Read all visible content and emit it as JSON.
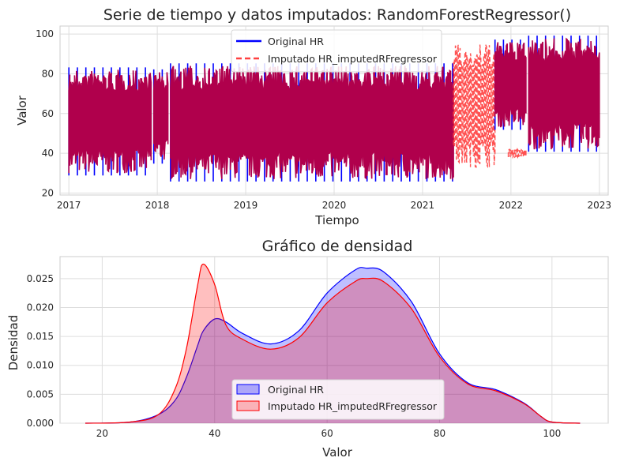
{
  "chart_data": [
    {
      "type": "line",
      "title": "Serie de tiempo y datos imputados: RandomForestRegressor()",
      "xlabel": "Tiempo",
      "ylabel": "Valor",
      "x_ticks": [
        "2017",
        "2018",
        "2019",
        "2020",
        "2021",
        "2022",
        "2023"
      ],
      "y_ticks": [
        20,
        40,
        60,
        80,
        100
      ],
      "xlim": [
        2016.9,
        2023.1
      ],
      "ylim": [
        19,
        104
      ],
      "grid": true,
      "legend": "upper-center",
      "series": [
        {
          "name": "Original HR",
          "color": "#0000ff",
          "style": "solid"
        },
        {
          "name": "Imputado HR_imputedRFregressor",
          "color": "#ff4040",
          "style": "dashed"
        }
      ],
      "overlap_color": "#b0004c",
      "segments": [
        {
          "start": 2017.0,
          "end": 2017.93,
          "low": 30,
          "high": 82,
          "source": "both"
        },
        {
          "start": 2017.96,
          "end": 2018.12,
          "low": 36,
          "high": 81,
          "source": "both"
        },
        {
          "start": 2018.15,
          "end": 2021.35,
          "low": 27,
          "high": 84,
          "source": "both"
        },
        {
          "start": 2021.35,
          "end": 2021.82,
          "low": 33,
          "high": 95,
          "source": "imputed"
        },
        {
          "start": 2021.82,
          "end": 2022.17,
          "low": 53,
          "high": 96,
          "source": "both"
        },
        {
          "start": 2021.97,
          "end": 2022.17,
          "low": 38,
          "high": 42,
          "source": "imputed"
        },
        {
          "start": 2022.2,
          "end": 2023.0,
          "low": 42,
          "high": 98,
          "source": "both"
        }
      ]
    },
    {
      "type": "area",
      "title": "Gráfico de densidad",
      "xlabel": "Valor",
      "ylabel": "Densidad",
      "x_ticks": [
        20,
        40,
        60,
        80,
        100
      ],
      "y_ticks": [
        "0.000",
        "0.005",
        "0.010",
        "0.015",
        "0.020",
        "0.025"
      ],
      "xlim": [
        12.5,
        110
      ],
      "ylim": [
        0,
        0.0288
      ],
      "grid": true,
      "legend": "lower-center",
      "x": [
        17,
        25,
        30,
        33,
        35,
        37,
        38,
        40,
        42,
        45,
        50,
        55,
        60,
        65,
        67,
        70,
        75,
        80,
        85,
        90,
        95,
        98,
        100,
        105
      ],
      "series": [
        {
          "name": "Original HR",
          "color": "#0000ff",
          "values": [
            0,
            0.0002,
            0.0015,
            0.004,
            0.008,
            0.0135,
            0.016,
            0.018,
            0.0175,
            0.0155,
            0.0137,
            0.016,
            0.0225,
            0.0265,
            0.0268,
            0.0262,
            0.021,
            0.012,
            0.007,
            0.0058,
            0.0035,
            0.0012,
            0.0002,
            0
          ]
        },
        {
          "name": "Imputado HR_imputedRFregressor",
          "color": "#ff0000",
          "values": [
            0,
            0.0002,
            0.0015,
            0.006,
            0.013,
            0.024,
            0.0275,
            0.024,
            0.017,
            0.0145,
            0.0128,
            0.0148,
            0.0208,
            0.0245,
            0.025,
            0.0245,
            0.0198,
            0.0115,
            0.0068,
            0.0056,
            0.0034,
            0.0012,
            0.0002,
            0
          ]
        }
      ]
    }
  ]
}
